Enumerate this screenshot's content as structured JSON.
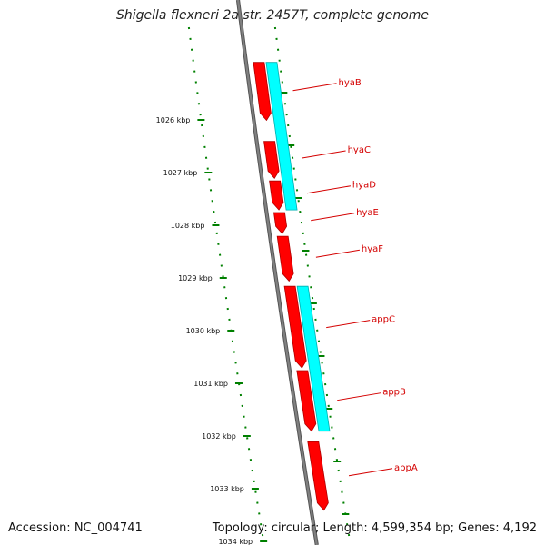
{
  "title": "Shigella flexneri 2a str. 2457T, complete genome",
  "footer": {
    "accession": "Accession: NC_004741",
    "summary": "Topology: circular; Length: 4,599,354 bp; Genes: 4,192"
  },
  "colors": {
    "backbone": "#808080",
    "gene_fill": "#ff0000",
    "gene_edge": "#b00000",
    "cds_band": "#00ffff",
    "tick_green": "#008000",
    "label_red": "#d40000",
    "text": "#111111"
  },
  "chart_data": {
    "type": "genome-map",
    "units": "kbp",
    "tick_labels": [
      "1026 kbp",
      "1027 kbp",
      "1028 kbp",
      "1029 kbp",
      "1030 kbp",
      "1031 kbp",
      "1032 kbp",
      "1033 kbp",
      "1034 kbp"
    ],
    "ticks_kbp": [
      1026,
      1027,
      1028,
      1029,
      1030,
      1031,
      1032,
      1033,
      1034
    ],
    "genes": [
      {
        "name": "hyaB",
        "start_kbp": 1025.15,
        "end_kbp": 1026.25
      },
      {
        "name": "hyaC",
        "start_kbp": 1026.65,
        "end_kbp": 1027.35
      },
      {
        "name": "hyaD",
        "start_kbp": 1027.4,
        "end_kbp": 1027.95
      },
      {
        "name": "hyaE",
        "start_kbp": 1028.0,
        "end_kbp": 1028.4
      },
      {
        "name": "hyaF",
        "start_kbp": 1028.45,
        "end_kbp": 1029.3
      },
      {
        "name": "appC",
        "start_kbp": 1029.4,
        "end_kbp": 1030.95
      },
      {
        "name": "appB",
        "start_kbp": 1031.0,
        "end_kbp": 1032.15
      },
      {
        "name": "appA",
        "start_kbp": 1032.35,
        "end_kbp": 1033.65
      }
    ],
    "cds_bands": [
      {
        "start_kbp": 1025.15,
        "end_kbp": 1027.95
      },
      {
        "start_kbp": 1029.4,
        "end_kbp": 1032.15
      }
    ]
  }
}
